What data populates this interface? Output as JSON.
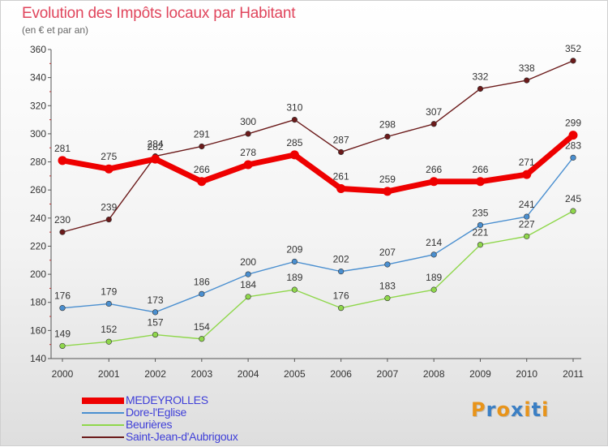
{
  "chart_data": {
    "type": "line",
    "title": "Evolution des Impôts locaux par Habitant",
    "subtitle": "(en € et par an)",
    "categories": [
      "2000",
      "2001",
      "2002",
      "2003",
      "2004",
      "2005",
      "2006",
      "2007",
      "2008",
      "2009",
      "2010",
      "2011"
    ],
    "ylim": [
      140,
      360
    ],
    "yticks": [
      140,
      160,
      180,
      200,
      220,
      240,
      260,
      280,
      300,
      320,
      340,
      360
    ],
    "grid": false,
    "legend_position": "bottom-left",
    "series": [
      {
        "name": "MEDEYROLLES",
        "values": [
          281,
          275,
          282,
          266,
          278,
          285,
          261,
          259,
          266,
          266,
          271,
          299
        ],
        "color": "#ee0000",
        "thick": true
      },
      {
        "name": "Dore-l'Eglise",
        "values": [
          176,
          179,
          173,
          186,
          200,
          209,
          202,
          207,
          214,
          235,
          241,
          283
        ],
        "color": "#4a8fd0"
      },
      {
        "name": "Beurières",
        "values": [
          149,
          152,
          157,
          154,
          184,
          189,
          176,
          183,
          189,
          221,
          227,
          245
        ],
        "color": "#8fd74b"
      },
      {
        "name": "Saint-Jean-d'Aubrigoux",
        "values": [
          230,
          239,
          284,
          291,
          300,
          310,
          287,
          298,
          307,
          332,
          338,
          352
        ],
        "color": "#6b1a1a"
      }
    ]
  },
  "logo": {
    "text": "Proxiti",
    "colors": [
      "#e8941a",
      "#3b7fc4",
      "#e8941a",
      "#3b7fc4",
      "#e8941a",
      "#3b7fc4",
      "#e8941a"
    ]
  }
}
